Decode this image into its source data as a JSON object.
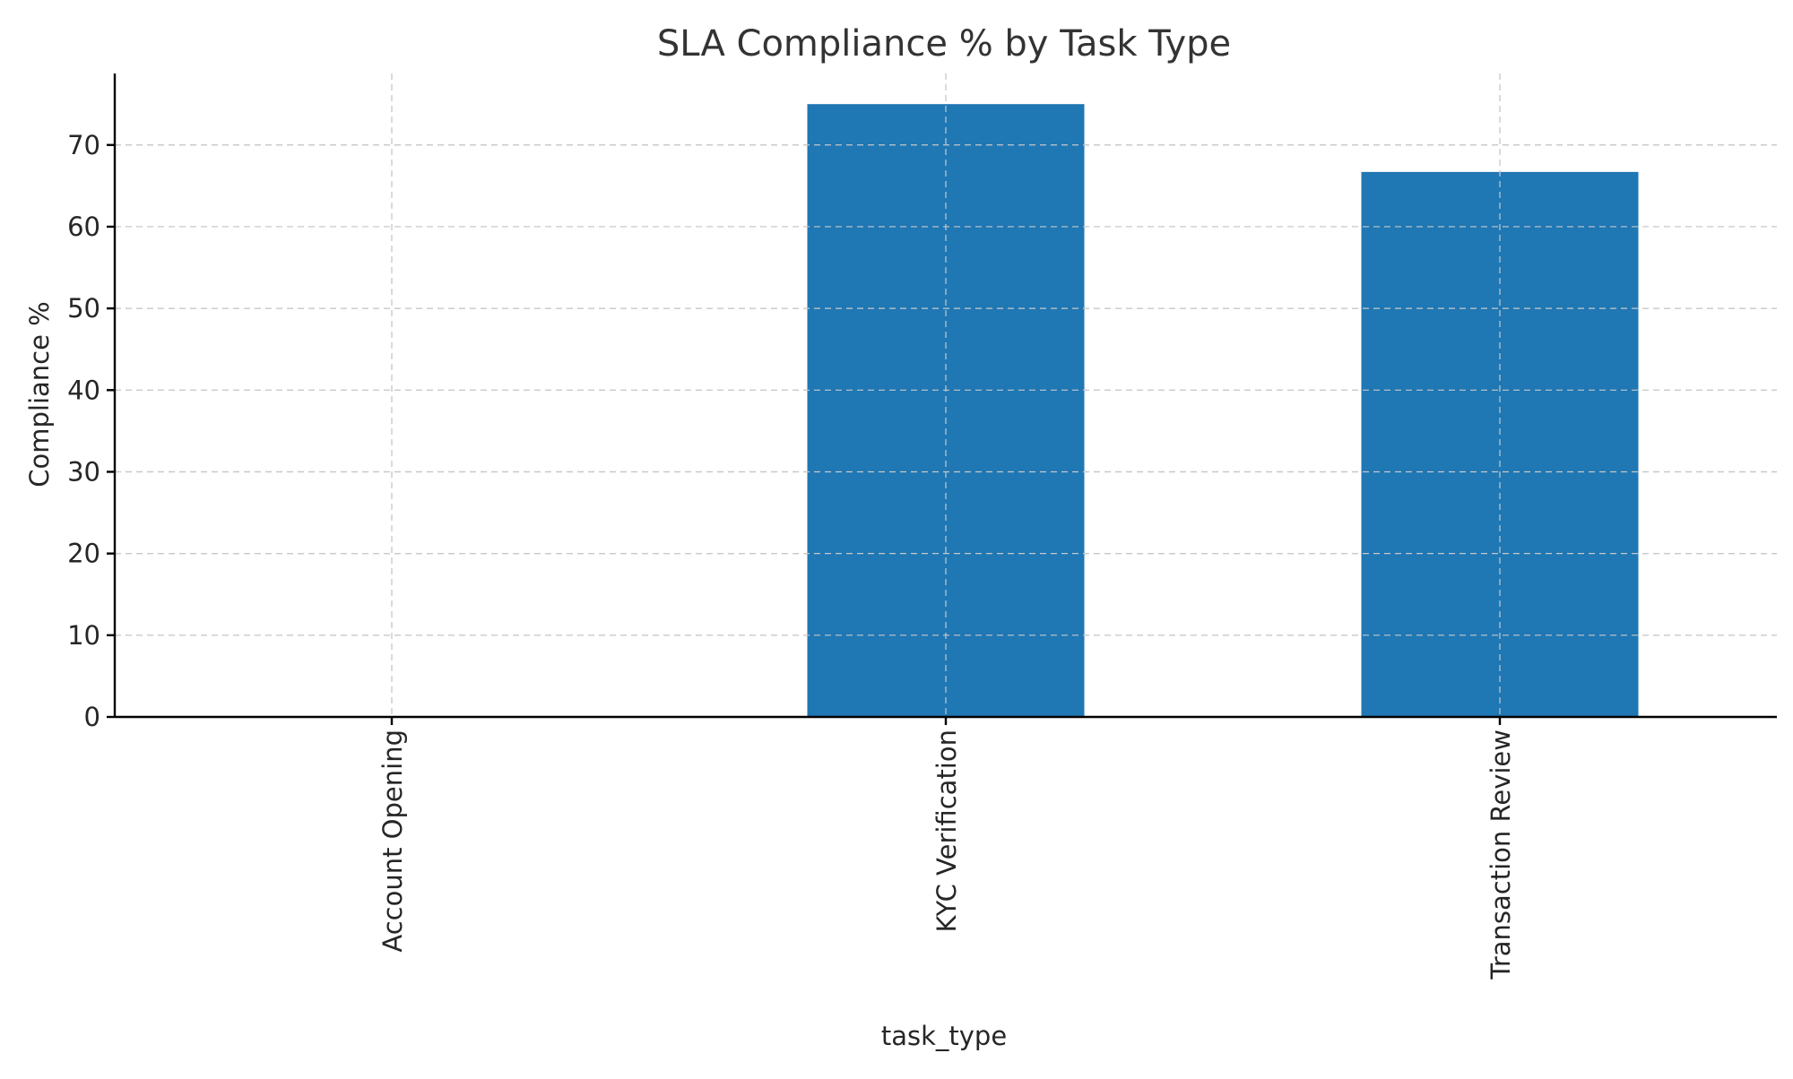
{
  "chart_data": {
    "type": "bar",
    "title": "SLA Compliance % by Task Type",
    "xlabel": "task_type",
    "ylabel": "Compliance %",
    "categories": [
      "Account Opening",
      "KYC Verification",
      "Transaction Review"
    ],
    "values": [
      0,
      75.0,
      66.7
    ],
    "ylim": [
      0,
      78.75
    ],
    "yticks": [
      0,
      10,
      20,
      30,
      40,
      50,
      60,
      70
    ],
    "grid": true,
    "bar_color": "#1f77b4",
    "grid_color": "#c8c8c8"
  }
}
